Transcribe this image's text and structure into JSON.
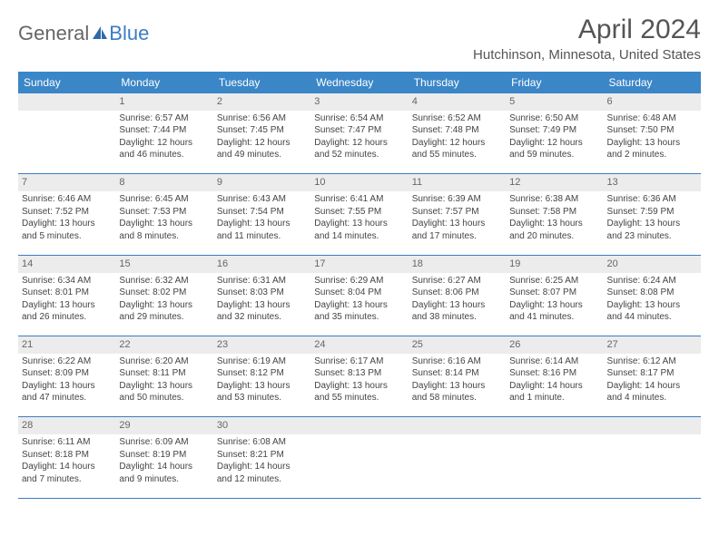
{
  "logo": {
    "text1": "General",
    "text2": "Blue"
  },
  "title": "April 2024",
  "location": "Hutchinson, Minnesota, United States",
  "headers": [
    "Sunday",
    "Monday",
    "Tuesday",
    "Wednesday",
    "Thursday",
    "Friday",
    "Saturday"
  ],
  "colors": {
    "header_bg": "#3b86c7",
    "header_fg": "#ffffff",
    "daynum_bg": "#ececec",
    "rule": "#3b7dc4",
    "text": "#444444",
    "accent": "#3b7dc4"
  },
  "weeks": [
    {
      "nums": [
        "",
        "1",
        "2",
        "3",
        "4",
        "5",
        "6"
      ],
      "cells": [
        {
          "sunrise": "",
          "sunset": "",
          "daylight": ""
        },
        {
          "sunrise": "Sunrise: 6:57 AM",
          "sunset": "Sunset: 7:44 PM",
          "daylight": "Daylight: 12 hours and 46 minutes."
        },
        {
          "sunrise": "Sunrise: 6:56 AM",
          "sunset": "Sunset: 7:45 PM",
          "daylight": "Daylight: 12 hours and 49 minutes."
        },
        {
          "sunrise": "Sunrise: 6:54 AM",
          "sunset": "Sunset: 7:47 PM",
          "daylight": "Daylight: 12 hours and 52 minutes."
        },
        {
          "sunrise": "Sunrise: 6:52 AM",
          "sunset": "Sunset: 7:48 PM",
          "daylight": "Daylight: 12 hours and 55 minutes."
        },
        {
          "sunrise": "Sunrise: 6:50 AM",
          "sunset": "Sunset: 7:49 PM",
          "daylight": "Daylight: 12 hours and 59 minutes."
        },
        {
          "sunrise": "Sunrise: 6:48 AM",
          "sunset": "Sunset: 7:50 PM",
          "daylight": "Daylight: 13 hours and 2 minutes."
        }
      ]
    },
    {
      "nums": [
        "7",
        "8",
        "9",
        "10",
        "11",
        "12",
        "13"
      ],
      "cells": [
        {
          "sunrise": "Sunrise: 6:46 AM",
          "sunset": "Sunset: 7:52 PM",
          "daylight": "Daylight: 13 hours and 5 minutes."
        },
        {
          "sunrise": "Sunrise: 6:45 AM",
          "sunset": "Sunset: 7:53 PM",
          "daylight": "Daylight: 13 hours and 8 minutes."
        },
        {
          "sunrise": "Sunrise: 6:43 AM",
          "sunset": "Sunset: 7:54 PM",
          "daylight": "Daylight: 13 hours and 11 minutes."
        },
        {
          "sunrise": "Sunrise: 6:41 AM",
          "sunset": "Sunset: 7:55 PM",
          "daylight": "Daylight: 13 hours and 14 minutes."
        },
        {
          "sunrise": "Sunrise: 6:39 AM",
          "sunset": "Sunset: 7:57 PM",
          "daylight": "Daylight: 13 hours and 17 minutes."
        },
        {
          "sunrise": "Sunrise: 6:38 AM",
          "sunset": "Sunset: 7:58 PM",
          "daylight": "Daylight: 13 hours and 20 minutes."
        },
        {
          "sunrise": "Sunrise: 6:36 AM",
          "sunset": "Sunset: 7:59 PM",
          "daylight": "Daylight: 13 hours and 23 minutes."
        }
      ]
    },
    {
      "nums": [
        "14",
        "15",
        "16",
        "17",
        "18",
        "19",
        "20"
      ],
      "cells": [
        {
          "sunrise": "Sunrise: 6:34 AM",
          "sunset": "Sunset: 8:01 PM",
          "daylight": "Daylight: 13 hours and 26 minutes."
        },
        {
          "sunrise": "Sunrise: 6:32 AM",
          "sunset": "Sunset: 8:02 PM",
          "daylight": "Daylight: 13 hours and 29 minutes."
        },
        {
          "sunrise": "Sunrise: 6:31 AM",
          "sunset": "Sunset: 8:03 PM",
          "daylight": "Daylight: 13 hours and 32 minutes."
        },
        {
          "sunrise": "Sunrise: 6:29 AM",
          "sunset": "Sunset: 8:04 PM",
          "daylight": "Daylight: 13 hours and 35 minutes."
        },
        {
          "sunrise": "Sunrise: 6:27 AM",
          "sunset": "Sunset: 8:06 PM",
          "daylight": "Daylight: 13 hours and 38 minutes."
        },
        {
          "sunrise": "Sunrise: 6:25 AM",
          "sunset": "Sunset: 8:07 PM",
          "daylight": "Daylight: 13 hours and 41 minutes."
        },
        {
          "sunrise": "Sunrise: 6:24 AM",
          "sunset": "Sunset: 8:08 PM",
          "daylight": "Daylight: 13 hours and 44 minutes."
        }
      ]
    },
    {
      "nums": [
        "21",
        "22",
        "23",
        "24",
        "25",
        "26",
        "27"
      ],
      "cells": [
        {
          "sunrise": "Sunrise: 6:22 AM",
          "sunset": "Sunset: 8:09 PM",
          "daylight": "Daylight: 13 hours and 47 minutes."
        },
        {
          "sunrise": "Sunrise: 6:20 AM",
          "sunset": "Sunset: 8:11 PM",
          "daylight": "Daylight: 13 hours and 50 minutes."
        },
        {
          "sunrise": "Sunrise: 6:19 AM",
          "sunset": "Sunset: 8:12 PM",
          "daylight": "Daylight: 13 hours and 53 minutes."
        },
        {
          "sunrise": "Sunrise: 6:17 AM",
          "sunset": "Sunset: 8:13 PM",
          "daylight": "Daylight: 13 hours and 55 minutes."
        },
        {
          "sunrise": "Sunrise: 6:16 AM",
          "sunset": "Sunset: 8:14 PM",
          "daylight": "Daylight: 13 hours and 58 minutes."
        },
        {
          "sunrise": "Sunrise: 6:14 AM",
          "sunset": "Sunset: 8:16 PM",
          "daylight": "Daylight: 14 hours and 1 minute."
        },
        {
          "sunrise": "Sunrise: 6:12 AM",
          "sunset": "Sunset: 8:17 PM",
          "daylight": "Daylight: 14 hours and 4 minutes."
        }
      ]
    },
    {
      "nums": [
        "28",
        "29",
        "30",
        "",
        "",
        "",
        ""
      ],
      "cells": [
        {
          "sunrise": "Sunrise: 6:11 AM",
          "sunset": "Sunset: 8:18 PM",
          "daylight": "Daylight: 14 hours and 7 minutes."
        },
        {
          "sunrise": "Sunrise: 6:09 AM",
          "sunset": "Sunset: 8:19 PM",
          "daylight": "Daylight: 14 hours and 9 minutes."
        },
        {
          "sunrise": "Sunrise: 6:08 AM",
          "sunset": "Sunset: 8:21 PM",
          "daylight": "Daylight: 14 hours and 12 minutes."
        },
        {
          "sunrise": "",
          "sunset": "",
          "daylight": ""
        },
        {
          "sunrise": "",
          "sunset": "",
          "daylight": ""
        },
        {
          "sunrise": "",
          "sunset": "",
          "daylight": ""
        },
        {
          "sunrise": "",
          "sunset": "",
          "daylight": ""
        }
      ]
    }
  ]
}
